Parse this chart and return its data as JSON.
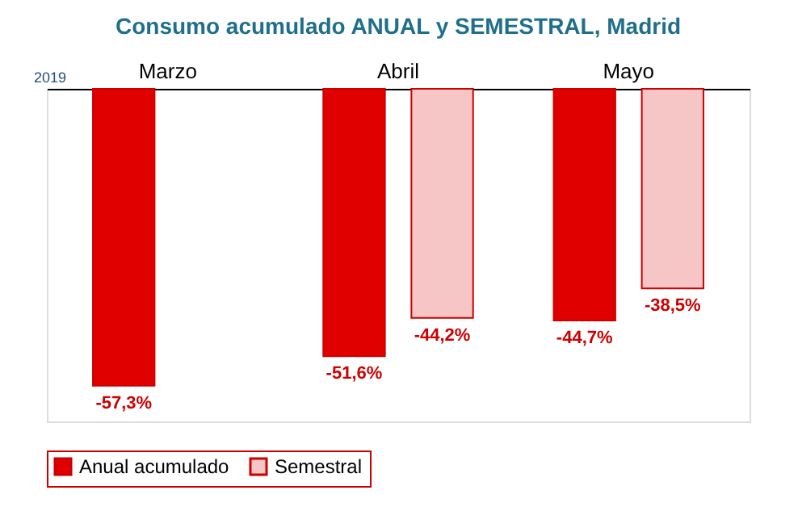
{
  "chart_data": {
    "type": "bar",
    "title": "Consumo acumulado ANUAL y SEMESTRAL, Madrid",
    "categories": [
      "Marzo",
      "Abril",
      "Mayo"
    ],
    "series": [
      {
        "name": "Anual acumulado",
        "color": "#e00000",
        "values": [
          -57.3,
          -51.6,
          -44.7
        ],
        "value_labels": [
          "-57,3%",
          "-51,6%",
          "-44,7%"
        ]
      },
      {
        "name": "Semestral",
        "color": "#f6c6c6",
        "values": [
          null,
          -44.2,
          -38.5
        ],
        "value_labels": [
          null,
          "-44,2%",
          "-38,5%"
        ]
      }
    ],
    "annotations": [
      "2019"
    ],
    "legend": "bottom",
    "grid": false,
    "tick_labels": "x"
  }
}
